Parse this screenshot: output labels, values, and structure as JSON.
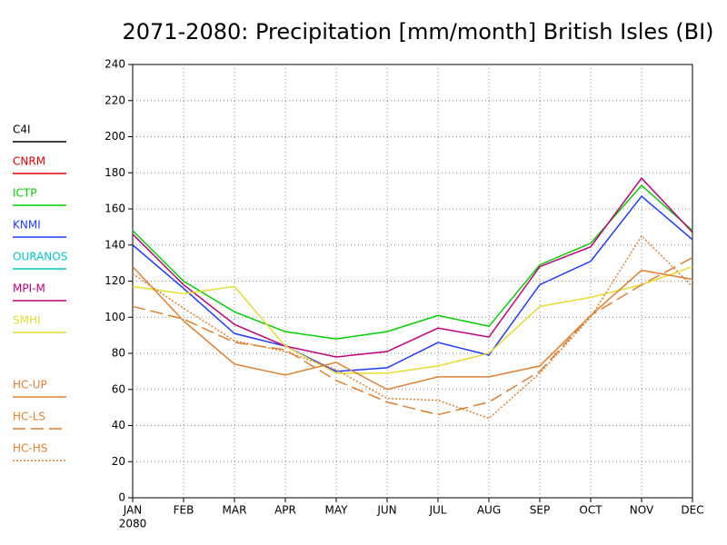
{
  "chart_data": {
    "type": "line",
    "title": "2071-2080: Precipitation [mm/month] British Isles (BI)",
    "categories": [
      "JAN",
      "FEB",
      "MAR",
      "APR",
      "MAY",
      "JUN",
      "JUL",
      "AUG",
      "SEP",
      "OCT",
      "NOV",
      "DEC"
    ],
    "year_label": "2080",
    "ylim": [
      0,
      240
    ],
    "yticks": [
      0,
      20,
      40,
      60,
      80,
      100,
      120,
      140,
      160,
      180,
      200,
      220,
      240
    ],
    "grid": true,
    "legend": "left",
    "series": [
      {
        "name": "C4I",
        "color": "#000000",
        "dash": "solid",
        "values": [
          null,
          null,
          null,
          null,
          null,
          null,
          null,
          null,
          null,
          null,
          null,
          null
        ]
      },
      {
        "name": "CNRM",
        "color": "#e00000",
        "dash": "solid",
        "values": [
          null,
          null,
          null,
          null,
          null,
          null,
          null,
          null,
          null,
          null,
          null,
          null
        ]
      },
      {
        "name": "ICTP",
        "color": "#00d000",
        "dash": "solid",
        "values": [
          148,
          120,
          103,
          92,
          88,
          92,
          101,
          95,
          129,
          141,
          173,
          148
        ]
      },
      {
        "name": "KNMI",
        "color": "#1e3cff",
        "dash": "solid",
        "values": [
          140,
          116,
          91,
          84,
          70,
          72,
          86,
          79,
          118,
          131,
          167,
          143
        ]
      },
      {
        "name": "OURANOS",
        "color": "#00c8c8",
        "dash": "solid",
        "values": [
          null,
          null,
          null,
          null,
          null,
          null,
          null,
          null,
          null,
          null,
          null,
          null
        ]
      },
      {
        "name": "MPI-M",
        "color": "#c0007a",
        "dash": "solid",
        "values": [
          146,
          118,
          96,
          84,
          78,
          81,
          94,
          89,
          128,
          139,
          177,
          147
        ]
      },
      {
        "name": "SMHI",
        "color": "#e6dc32",
        "dash": "solid",
        "values": [
          117,
          113,
          117,
          84,
          69,
          69,
          73,
          80,
          106,
          111,
          118,
          128
        ]
      },
      {
        "name": "HC-UP",
        "color": "#e08030",
        "dash": "solid",
        "values": [
          128,
          98,
          74,
          68,
          75,
          60,
          67,
          67,
          73,
          101,
          126,
          121
        ]
      },
      {
        "name": "HC-LS",
        "color": "#e08030",
        "dash": "dashed",
        "values": [
          106,
          99,
          86,
          82,
          65,
          53,
          46,
          53,
          70,
          101,
          118,
          133
        ]
      },
      {
        "name": "HC-HS",
        "color": "#e08030",
        "dash": "dotted",
        "values": [
          124,
          105,
          87,
          81,
          71,
          55,
          54,
          44,
          69,
          100,
          145,
          117
        ]
      }
    ]
  }
}
